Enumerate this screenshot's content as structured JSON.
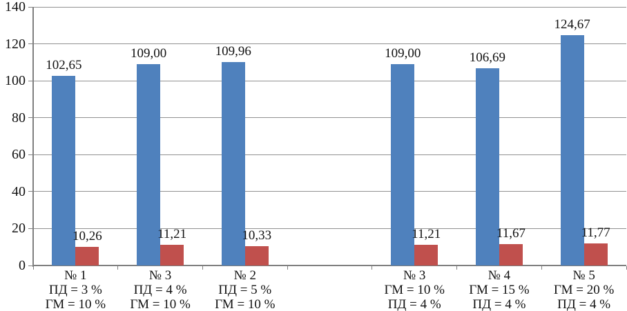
{
  "chart_data": {
    "type": "bar",
    "title": "",
    "xlabel": "",
    "ylabel": "",
    "ylim": [
      0,
      140
    ],
    "yticks": [
      "0",
      "20",
      "40",
      "60",
      "80",
      "100",
      "120",
      "140"
    ],
    "ytick_values": [
      0,
      20,
      40,
      60,
      80,
      100,
      120,
      140
    ],
    "grid": true,
    "legend": "none",
    "num_slots": 7,
    "colors": {
      "series1": "#4f81bd",
      "series2": "#c0504d",
      "gridline": "#909090",
      "axis": "#7f7f7f",
      "text": "#111111"
    },
    "categories": [
      {
        "lines": [
          "№ 1",
          "ПД = 3 %",
          "ГМ = 10 %"
        ]
      },
      {
        "lines": [
          "№ 3",
          "ПД = 4 %",
          "ГМ = 10 %"
        ]
      },
      {
        "lines": [
          "№ 2",
          "ПД = 5 %",
          "ГМ = 10 %"
        ]
      },
      {
        "lines": []
      },
      {
        "lines": [
          "№ 3",
          "ГМ = 10 %",
          "ПД = 4 %"
        ]
      },
      {
        "lines": [
          "№ 4",
          "ГМ = 15 %",
          "ПД = 4 %"
        ]
      },
      {
        "lines": [
          "№ 5",
          "ГМ = 20 %",
          "ПД = 4 %"
        ]
      }
    ],
    "series": [
      {
        "name": "series-1-blue",
        "color_key": "series1",
        "values": [
          102.65,
          109.0,
          109.96,
          null,
          109.0,
          106.69,
          124.67
        ],
        "labels": [
          "102,65",
          "109,00",
          "109,96",
          "",
          "109,00",
          "106,69",
          "124,67"
        ]
      },
      {
        "name": "series-2-red",
        "color_key": "series2",
        "values": [
          10.26,
          11.21,
          10.33,
          null,
          11.21,
          11.67,
          11.77
        ],
        "labels": [
          "10,26",
          "11,21",
          "10,33",
          "",
          "11,21",
          "11,67",
          "11,77"
        ]
      }
    ]
  }
}
